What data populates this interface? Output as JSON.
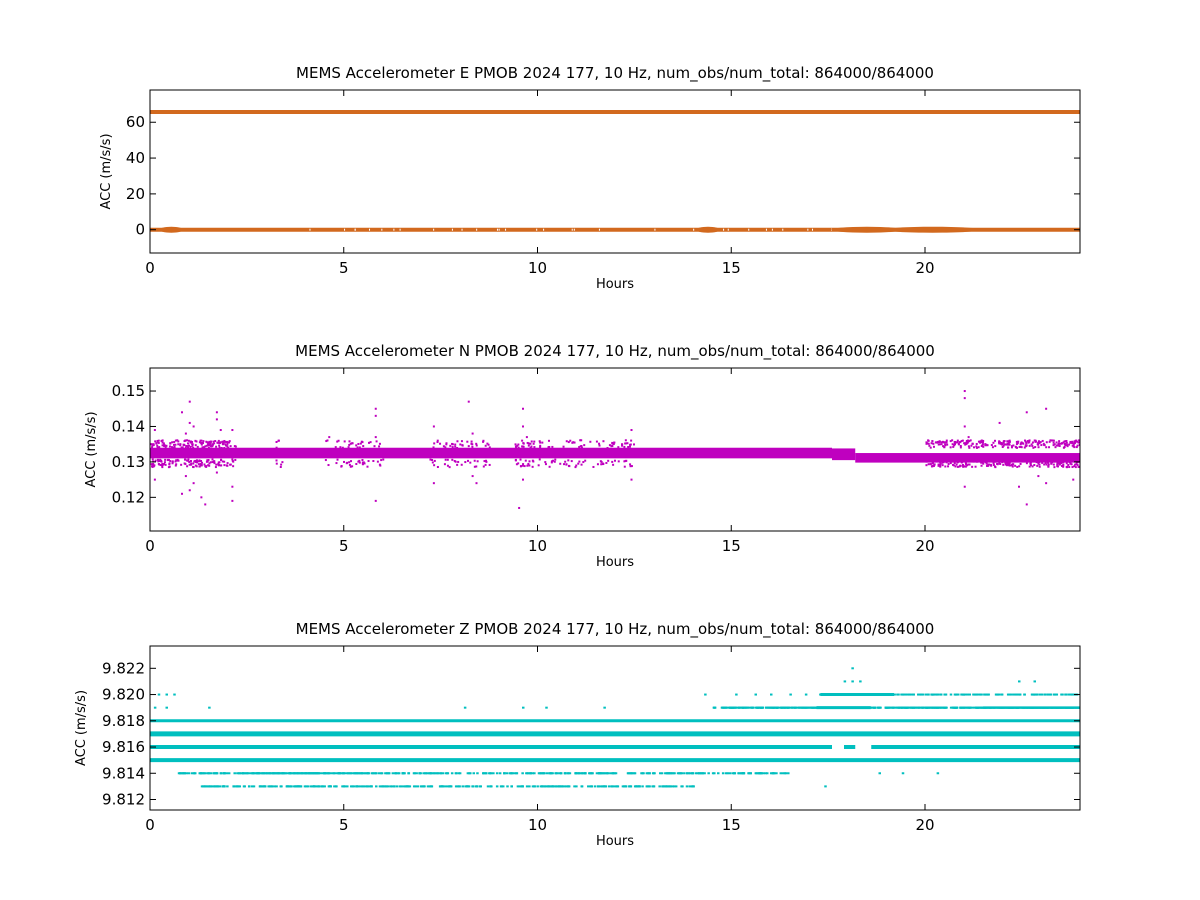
{
  "chart_data": [
    {
      "type": "scatter",
      "title": "MEMS Accelerometer E PMOB 2024 177, 10 Hz, num_obs/num_total: 864000/864000",
      "xlabel": "Hours",
      "ylabel": "ACC (m/s/s)",
      "xlim": [
        0,
        24
      ],
      "ylim": [
        -13,
        78
      ],
      "xticks": [
        0,
        5,
        10,
        15,
        20
      ],
      "xtick_labels": [
        "0",
        "5",
        "10",
        "15",
        "20"
      ],
      "yticks": [
        0,
        20,
        40,
        60
      ],
      "ytick_labels": [
        "0",
        "20",
        "40",
        "60"
      ],
      "grid": false,
      "color": "#d2691e",
      "bands": [
        {
          "level": 65.7,
          "from": 0,
          "to": 24
        },
        {
          "level": 0,
          "from": 0,
          "to": 24
        }
      ],
      "clusters": [
        {
          "x": 0.55,
          "y": 0,
          "n": 2
        },
        {
          "x": 14.4,
          "y": 0,
          "n": 2
        },
        {
          "x": 18.5,
          "y": 0,
          "n": 6
        },
        {
          "x": 20.2,
          "y": 0,
          "n": 8
        }
      ]
    },
    {
      "type": "scatter",
      "title": "MEMS Accelerometer N PMOB 2024 177, 10 Hz, num_obs/num_total: 864000/864000",
      "xlabel": "Hours",
      "ylabel": "ACC (m/s/s)",
      "xlim": [
        0,
        24
      ],
      "ylim": [
        0.1105,
        0.1565
      ],
      "xticks": [
        0,
        5,
        10,
        15,
        20
      ],
      "xtick_labels": [
        "0",
        "5",
        "10",
        "15",
        "20"
      ],
      "yticks": [
        0.12,
        0.13,
        0.14,
        0.15
      ],
      "ytick_labels": [
        "0.12",
        "0.13",
        "0.14",
        "0.15"
      ],
      "grid": false,
      "color": "#bf00bf",
      "bands": [
        {
          "from": 0,
          "to": 17.6,
          "ymin": 0.131,
          "ymax": 0.134
        },
        {
          "from": 17.6,
          "to": 18.2,
          "ymin": 0.1305,
          "ymax": 0.1338
        },
        {
          "from": 18.2,
          "to": 24,
          "ymin": 0.1298,
          "ymax": 0.1325
        }
      ],
      "outliers": [
        [
          0.1,
          0.139
        ],
        [
          0.1,
          0.125
        ],
        [
          0.2,
          0.136
        ],
        [
          0.8,
          0.144
        ],
        [
          0.8,
          0.121
        ],
        [
          0.9,
          0.138
        ],
        [
          0.9,
          0.126
        ],
        [
          1.0,
          0.147
        ],
        [
          1.0,
          0.122
        ],
        [
          1.0,
          0.141
        ],
        [
          1.1,
          0.14
        ],
        [
          1.1,
          0.124
        ],
        [
          1.3,
          0.136
        ],
        [
          1.3,
          0.12
        ],
        [
          1.4,
          0.118
        ],
        [
          1.6,
          0.135
        ],
        [
          1.7,
          0.144
        ],
        [
          1.7,
          0.142
        ],
        [
          1.7,
          0.127
        ],
        [
          1.8,
          0.139
        ],
        [
          2.1,
          0.139
        ],
        [
          2.1,
          0.123
        ],
        [
          2.1,
          0.119
        ],
        [
          3.3,
          0.136
        ],
        [
          4.6,
          0.137
        ],
        [
          5.8,
          0.145
        ],
        [
          5.8,
          0.143
        ],
        [
          5.8,
          0.137
        ],
        [
          5.8,
          0.119
        ],
        [
          7.3,
          0.14
        ],
        [
          7.3,
          0.124
        ],
        [
          7.4,
          0.136
        ],
        [
          8.2,
          0.147
        ],
        [
          8.3,
          0.138
        ],
        [
          8.3,
          0.126
        ],
        [
          8.4,
          0.124
        ],
        [
          9.5,
          0.117
        ],
        [
          9.6,
          0.145
        ],
        [
          9.6,
          0.14
        ],
        [
          9.6,
          0.125
        ],
        [
          9.7,
          0.137
        ],
        [
          12.4,
          0.139
        ],
        [
          12.4,
          0.125
        ],
        [
          21.0,
          0.15
        ],
        [
          21.0,
          0.148
        ],
        [
          21.0,
          0.14
        ],
        [
          21.0,
          0.123
        ],
        [
          21.1,
          0.137
        ],
        [
          21.9,
          0.141
        ],
        [
          22.6,
          0.144
        ],
        [
          22.6,
          0.118
        ],
        [
          22.4,
          0.123
        ],
        [
          23.1,
          0.145
        ],
        [
          23.1,
          0.124
        ],
        [
          23.3,
          0.136
        ],
        [
          23.8,
          0.125
        ],
        [
          22.9,
          0.126
        ]
      ],
      "speckle_ymin": 0.127,
      "speckle_ymax": 0.137
    },
    {
      "type": "scatter",
      "title": "MEMS Accelerometer Z PMOB 2024 177, 10 Hz, num_obs/num_total: 864000/864000",
      "xlabel": "Hours",
      "ylabel": "ACC (m/s/s)",
      "xlim": [
        0,
        24
      ],
      "ylim": [
        9.8112,
        9.8237
      ],
      "xticks": [
        0,
        5,
        10,
        15,
        20
      ],
      "xtick_labels": [
        "0",
        "5",
        "10",
        "15",
        "20"
      ],
      "yticks": [
        9.812,
        9.814,
        9.816,
        9.818,
        9.82,
        9.822
      ],
      "ytick_labels": [
        "9.812",
        "9.814",
        "9.816",
        "9.818",
        "9.820",
        "9.822"
      ],
      "grid": false,
      "color": "#00bfbf",
      "levels": [
        {
          "y": 9.817,
          "from": 0,
          "to": 24,
          "weight": 5
        },
        {
          "y": 9.816,
          "from": 0,
          "to": 24,
          "weight": 4
        },
        {
          "y": 9.815,
          "from": 0,
          "to": 24,
          "weight": 4
        },
        {
          "y": 9.818,
          "from": 0,
          "to": 24,
          "weight": 3
        },
        {
          "y": 9.819,
          "from": 14.5,
          "to": 24,
          "weight": 2
        },
        {
          "y": 9.814,
          "from": 0.7,
          "to": 16.5,
          "weight": 1
        },
        {
          "y": 9.813,
          "from": 1.3,
          "to": 14.0,
          "weight": 1
        },
        {
          "y": 9.82,
          "from": 17.2,
          "to": 24,
          "weight": 1
        }
      ],
      "sparse": [
        [
          0.2,
          9.82
        ],
        [
          0.4,
          9.82
        ],
        [
          0.6,
          9.82
        ],
        [
          0.1,
          9.819
        ],
        [
          0.4,
          9.819
        ],
        [
          1.5,
          9.819
        ],
        [
          8.1,
          9.819
        ],
        [
          9.6,
          9.819
        ],
        [
          10.2,
          9.819
        ],
        [
          11.7,
          9.819
        ],
        [
          14.3,
          9.82
        ],
        [
          15.1,
          9.82
        ],
        [
          15.6,
          9.82
        ],
        [
          16.0,
          9.82
        ],
        [
          16.5,
          9.82
        ],
        [
          16.9,
          9.82
        ],
        [
          17.9,
          9.821
        ],
        [
          18.1,
          9.821
        ],
        [
          18.3,
          9.821
        ],
        [
          18.1,
          9.822
        ],
        [
          22.4,
          9.821
        ],
        [
          22.8,
          9.821
        ],
        [
          18.8,
          9.814
        ],
        [
          19.4,
          9.814
        ],
        [
          20.3,
          9.814
        ],
        [
          17.4,
          9.813
        ],
        [
          17.5,
          9.815
        ],
        [
          18.9,
          9.815
        ]
      ]
    }
  ]
}
